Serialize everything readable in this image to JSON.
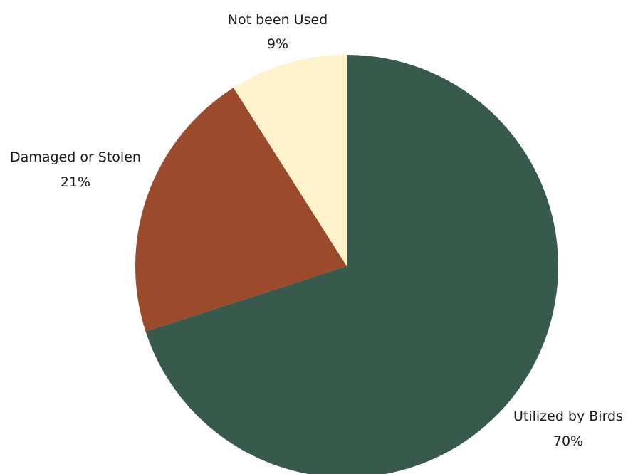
{
  "chart_data": {
    "type": "pie",
    "title": "",
    "start": "12 o'clock",
    "direction": "clockwise",
    "slices": [
      {
        "name": "Utilized by Birds",
        "value": 70,
        "value_label": "70%",
        "color": "#385a4d"
      },
      {
        "name": "Damaged or Stolen",
        "value": 21,
        "value_label": "21%",
        "color": "#9c4a2c"
      },
      {
        "name": "Not been Used",
        "value": 9,
        "value_label": "9%",
        "color": "#fdf2cb"
      }
    ]
  }
}
